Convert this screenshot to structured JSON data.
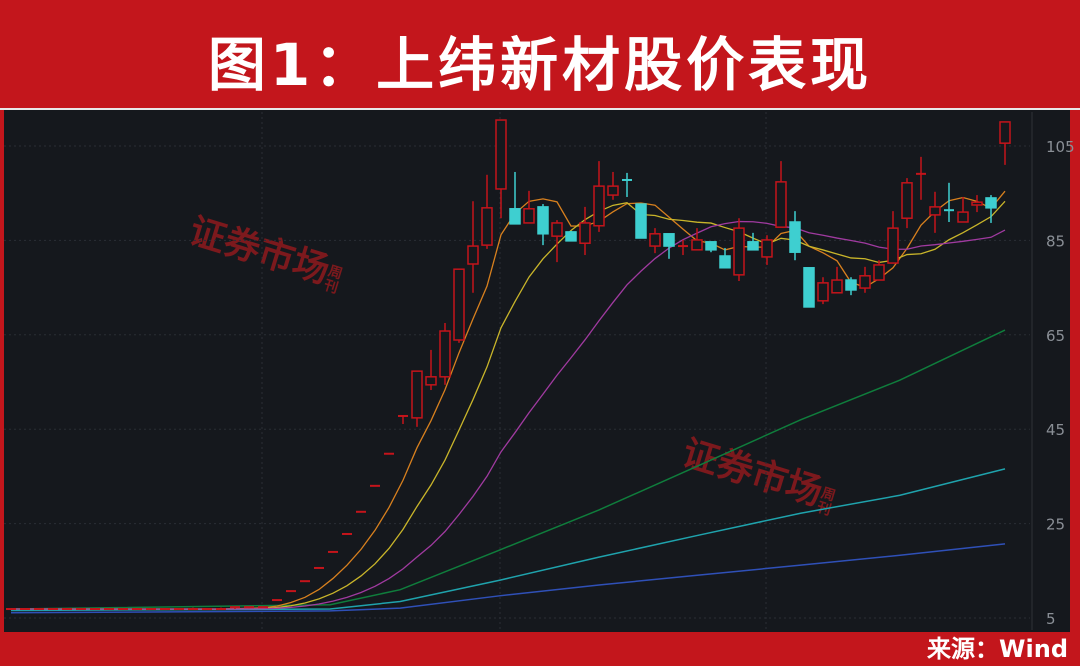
{
  "header": {
    "title": "图1：上纬新材股价表现"
  },
  "footer": {
    "source": "来源：Wind"
  },
  "watermark": {
    "text": "证券市场",
    "suffix": "周刊"
  },
  "colors": {
    "frame": "#c3161c",
    "background": "#15181d",
    "up": "#c4141b",
    "down": "#3ecfd0",
    "ma_colors": [
      "#d8801e",
      "#c9b52a",
      "#a03aa0",
      "#0f7d3c",
      "#1fa3ad",
      "#2f50b8"
    ]
  },
  "chart_data": {
    "type": "candlestick",
    "title": "",
    "y_ticks": [
      5,
      25,
      45,
      65,
      85,
      105
    ],
    "ylim": [
      4,
      112
    ],
    "grid": true,
    "candles_ohlc": [
      [
        6.9,
        6.9,
        6.9,
        6.9
      ],
      [
        6.9,
        6.9,
        6.9,
        6.9
      ],
      [
        6.9,
        6.9,
        6.9,
        6.9
      ],
      [
        6.9,
        6.9,
        6.9,
        6.9
      ],
      [
        6.9,
        6.9,
        6.9,
        6.9
      ],
      [
        6.9,
        6.9,
        6.9,
        6.9
      ],
      [
        6.9,
        6.9,
        6.9,
        6.9
      ],
      [
        6.9,
        6.9,
        6.9,
        6.9
      ],
      [
        6.9,
        6.9,
        6.9,
        6.9
      ],
      [
        6.9,
        6.9,
        6.9,
        6.9
      ],
      [
        6.9,
        6.9,
        6.9,
        6.9
      ],
      [
        6.9,
        6.9,
        6.9,
        6.9
      ],
      [
        6.9,
        6.9,
        6.9,
        6.9
      ],
      [
        6.9,
        7.2,
        6.8,
        6.9
      ],
      [
        6.9,
        7.1,
        6.8,
        6.9
      ],
      [
        6.9,
        7.2,
        6.8,
        6.9
      ],
      [
        7.0,
        7.3,
        6.9,
        7.3
      ],
      [
        7.3,
        7.4,
        7.1,
        7.3
      ],
      [
        7.3,
        7.4,
        7.2,
        7.3
      ],
      [
        8.8,
        8.8,
        8.8,
        8.8
      ],
      [
        10.7,
        10.7,
        10.7,
        10.7
      ],
      [
        12.8,
        12.8,
        12.8,
        12.8
      ],
      [
        15.6,
        15.6,
        15.6,
        15.6
      ],
      [
        19.0,
        19.0,
        19.0,
        19.0
      ],
      [
        22.8,
        22.8,
        22.8,
        22.8
      ],
      [
        27.5,
        27.5,
        27.5,
        27.5
      ],
      [
        33.0,
        33.0,
        33.0,
        33.0
      ],
      [
        39.8,
        39.8,
        39.8,
        39.8
      ],
      [
        47.8,
        47.8,
        46.1,
        47.8
      ],
      [
        47.4,
        57.3,
        45.5,
        57.3
      ],
      [
        54.4,
        61.8,
        53.3,
        56.1
      ],
      [
        56.1,
        67.5,
        54.4,
        65.8
      ],
      [
        63.9,
        78.9,
        63.3,
        78.9
      ],
      [
        80.0,
        93.3,
        73.9,
        83.8
      ],
      [
        84.0,
        98.9,
        83.2,
        91.9
      ],
      [
        95.9,
        110.5,
        89.7,
        110.5
      ],
      [
        91.7,
        99.5,
        88.5,
        88.5
      ],
      [
        88.7,
        95.5,
        88.7,
        91.7
      ],
      [
        92.1,
        92.7,
        84.0,
        86.4
      ],
      [
        85.9,
        89.3,
        80.4,
        88.7
      ],
      [
        86.8,
        87.0,
        84.9,
        84.9
      ],
      [
        84.4,
        92.1,
        81.9,
        88.7
      ],
      [
        88.1,
        101.8,
        86.8,
        96.5
      ],
      [
        94.6,
        99.5,
        93.6,
        96.5
      ],
      [
        97.8,
        99.3,
        94.2,
        97.4
      ],
      [
        92.7,
        92.7,
        85.5,
        85.5
      ],
      [
        83.8,
        87.6,
        82.3,
        86.4
      ],
      [
        86.4,
        86.4,
        81.1,
        83.8
      ],
      [
        83.6,
        85.1,
        81.9,
        83.8
      ],
      [
        83.0,
        87.6,
        83.0,
        85.1
      ],
      [
        84.7,
        84.7,
        82.5,
        83.0
      ],
      [
        81.7,
        83.4,
        79.2,
        79.2
      ],
      [
        77.7,
        89.7,
        76.4,
        87.6
      ],
      [
        84.7,
        86.6,
        83.0,
        83.0
      ],
      [
        81.5,
        86.1,
        79.8,
        85.1
      ],
      [
        87.8,
        101.8,
        87.8,
        97.4
      ],
      [
        88.9,
        91.2,
        80.8,
        82.5
      ],
      [
        79.2,
        79.2,
        70.9,
        70.9
      ],
      [
        72.2,
        77.2,
        71.5,
        76.0
      ],
      [
        73.9,
        79.4,
        73.9,
        76.6
      ],
      [
        76.6,
        77.2,
        73.4,
        74.5
      ],
      [
        74.9,
        79.4,
        73.9,
        77.5
      ],
      [
        76.6,
        80.8,
        76.6,
        79.8
      ],
      [
        80.2,
        91.2,
        80.2,
        87.6
      ],
      [
        89.7,
        98.2,
        87.6,
        97.2
      ],
      [
        98.9,
        102.7,
        93.6,
        99.1
      ],
      [
        90.4,
        95.3,
        86.6,
        92.1
      ],
      [
        91.4,
        97.2,
        88.9,
        91.0
      ],
      [
        88.9,
        94.2,
        88.9,
        91.0
      ],
      [
        92.5,
        94.6,
        91.0,
        93.1
      ],
      [
        94.0,
        94.6,
        88.7,
        91.9
      ],
      [
        105.6,
        110.1,
        101.0,
        110.1
      ]
    ],
    "moving_averages_computed": [
      5,
      10,
      20
    ],
    "long_moving_averages": [
      {
        "points": [
          [
            0,
            6.9
          ],
          [
            22.8,
            7.8
          ],
          [
            27.8,
            11
          ],
          [
            34.9,
            19.4
          ],
          [
            42,
            27.9
          ],
          [
            49.2,
            37.4
          ],
          [
            56.4,
            47
          ],
          [
            63.5,
            55.4
          ],
          [
            71,
            66
          ]
        ]
      },
      {
        "points": [
          [
            0,
            6.6
          ],
          [
            22.8,
            6.9
          ],
          [
            27.8,
            8.5
          ],
          [
            34.9,
            13
          ],
          [
            42,
            17.9
          ],
          [
            49.2,
            22.6
          ],
          [
            56.4,
            27.2
          ],
          [
            63.5,
            31
          ],
          [
            71,
            36.6
          ]
        ]
      },
      {
        "points": [
          [
            0,
            6.1
          ],
          [
            22.8,
            6.5
          ],
          [
            27.8,
            7.1
          ],
          [
            34.9,
            9.7
          ],
          [
            42,
            12
          ],
          [
            49.2,
            14.1
          ],
          [
            56.4,
            16.2
          ],
          [
            63.5,
            18.3
          ],
          [
            71,
            20.7
          ]
        ]
      }
    ]
  }
}
